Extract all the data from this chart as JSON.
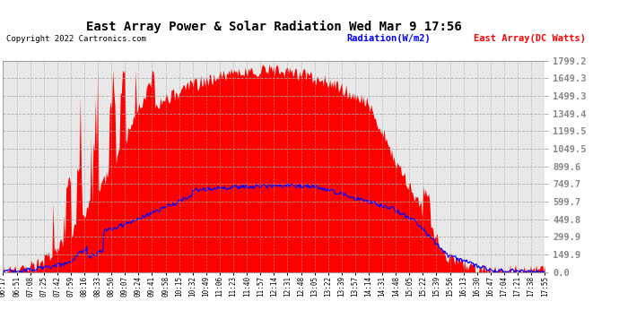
{
  "title": "East Array Power & Solar Radiation Wed Mar 9 17:56",
  "copyright": "Copyright 2022 Cartronics.com",
  "legend_radiation": "Radiation(W/m2)",
  "legend_east": "East Array(DC Watts)",
  "y_max": 1799.2,
  "y_min": 0.0,
  "y_ticks": [
    0.0,
    149.9,
    299.9,
    449.8,
    599.7,
    749.7,
    899.6,
    1049.5,
    1199.5,
    1349.4,
    1499.3,
    1649.3,
    1799.2
  ],
  "plot_bg_color": "#e8e8e8",
  "fig_bg_color": "#ffffff",
  "red_color": "#ff0000",
  "blue_color": "#0000ff",
  "grid_color": "#aaaaaa",
  "x_labels": [
    "06:17",
    "06:51",
    "07:08",
    "07:25",
    "07:42",
    "07:59",
    "08:16",
    "08:33",
    "08:50",
    "09:07",
    "09:24",
    "09:41",
    "09:58",
    "10:15",
    "10:32",
    "10:49",
    "11:06",
    "11:23",
    "11:40",
    "11:57",
    "12:14",
    "12:31",
    "12:48",
    "13:05",
    "13:22",
    "13:39",
    "13:57",
    "14:14",
    "14:31",
    "14:48",
    "15:05",
    "15:22",
    "15:39",
    "15:56",
    "16:13",
    "16:30",
    "16:47",
    "17:04",
    "17:21",
    "17:38",
    "17:55"
  ],
  "n_points": 500,
  "east_peak": 1720,
  "rad_peak": 720
}
